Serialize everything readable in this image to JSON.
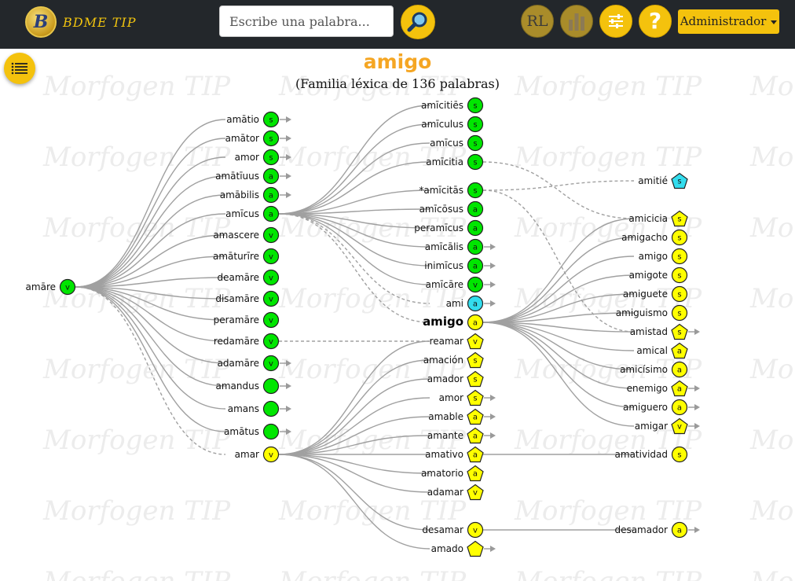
{
  "app": {
    "name": "BDME TIP",
    "logo_letter": "B",
    "watermark": "Morfogen TIP"
  },
  "search": {
    "placeholder": "Escribe una palabra..."
  },
  "toolbar": {
    "rl_label": "RL",
    "help_label": "?",
    "admin_label": "Administrador"
  },
  "title": {
    "word": "amigo",
    "subtitle": "(Familia léxica de 136 palabras)"
  },
  "colors": {
    "latin_node": "#00e600",
    "spanish_node": "#ffff00",
    "french_node": "#33ddee",
    "edge": "#a0a0a0",
    "title": "#f5a623",
    "accent": "#f4c20d",
    "topbar": "#23272b"
  },
  "nodes": [
    {
      "id": "amare",
      "label": "amāre",
      "tag": "v",
      "lang": "latin",
      "shape": "circle"
    },
    {
      "id": "amatio",
      "label": "amātio",
      "tag": "s",
      "lang": "latin",
      "shape": "circle",
      "more": true
    },
    {
      "id": "amator",
      "label": "amātor",
      "tag": "s",
      "lang": "latin",
      "shape": "circle",
      "more": true
    },
    {
      "id": "amor_l",
      "label": "amor",
      "tag": "s",
      "lang": "latin",
      "shape": "circle",
      "more": true
    },
    {
      "id": "amatiuus",
      "label": "amātīuus",
      "tag": "a",
      "lang": "latin",
      "shape": "circle",
      "more": true
    },
    {
      "id": "amabilis",
      "label": "amābilis",
      "tag": "a",
      "lang": "latin",
      "shape": "circle",
      "more": true
    },
    {
      "id": "amicus1",
      "label": "amīcus",
      "tag": "a",
      "lang": "latin",
      "shape": "circle"
    },
    {
      "id": "amascere",
      "label": "amascere",
      "tag": "v",
      "lang": "latin",
      "shape": "circle"
    },
    {
      "id": "amaturire",
      "label": "amāturīre",
      "tag": "v",
      "lang": "latin",
      "shape": "circle"
    },
    {
      "id": "deamare",
      "label": "deamāre",
      "tag": "v",
      "lang": "latin",
      "shape": "circle"
    },
    {
      "id": "disamare",
      "label": "disamāre",
      "tag": "v",
      "lang": "latin",
      "shape": "circle"
    },
    {
      "id": "peramare",
      "label": "peramāre",
      "tag": "v",
      "lang": "latin",
      "shape": "circle"
    },
    {
      "id": "redamare",
      "label": "redamāre",
      "tag": "v",
      "lang": "latin",
      "shape": "circle"
    },
    {
      "id": "adamare",
      "label": "adamāre",
      "tag": "v",
      "lang": "latin",
      "shape": "circle",
      "more": true
    },
    {
      "id": "amandus",
      "label": "amandus",
      "tag": "",
      "lang": "latin",
      "shape": "circle",
      "more": true
    },
    {
      "id": "amans",
      "label": "amans",
      "tag": "",
      "lang": "latin",
      "shape": "circle",
      "more": true
    },
    {
      "id": "amatus",
      "label": "amātus",
      "tag": "",
      "lang": "latin",
      "shape": "circle",
      "more": true
    },
    {
      "id": "amar",
      "label": "amar",
      "tag": "v",
      "lang": "spanish",
      "shape": "circle"
    },
    {
      "id": "amicities",
      "label": "amīcitiēs",
      "tag": "s",
      "lang": "latin",
      "shape": "circle"
    },
    {
      "id": "amiculus",
      "label": "amīculus",
      "tag": "s",
      "lang": "latin",
      "shape": "circle"
    },
    {
      "id": "amicus2",
      "label": "amīcus",
      "tag": "s",
      "lang": "latin",
      "shape": "circle"
    },
    {
      "id": "amicitia",
      "label": "amīcitia",
      "tag": "s",
      "lang": "latin",
      "shape": "circle"
    },
    {
      "id": "amicitas",
      "label": "*amīcitās",
      "tag": "s",
      "lang": "latin",
      "shape": "circle"
    },
    {
      "id": "amicosus",
      "label": "amīcōsus",
      "tag": "a",
      "lang": "latin",
      "shape": "circle"
    },
    {
      "id": "peramicus",
      "label": "peramīcus",
      "tag": "a",
      "lang": "latin",
      "shape": "circle"
    },
    {
      "id": "amicalis",
      "label": "amīcālis",
      "tag": "a",
      "lang": "latin",
      "shape": "circle",
      "more": true
    },
    {
      "id": "inimicus",
      "label": "inimīcus",
      "tag": "a",
      "lang": "latin",
      "shape": "circle",
      "more": true
    },
    {
      "id": "amicare",
      "label": "amīcāre",
      "tag": "v",
      "lang": "latin",
      "shape": "circle",
      "more": true
    },
    {
      "id": "ami",
      "label": "ami",
      "tag": "a",
      "lang": "french",
      "shape": "circle",
      "more": true
    },
    {
      "id": "amigo",
      "label": "amigo",
      "tag": "a",
      "lang": "spanish",
      "shape": "circle",
      "main": true
    },
    {
      "id": "reamar",
      "label": "reamar",
      "tag": "v",
      "lang": "spanish",
      "shape": "pentagon"
    },
    {
      "id": "amacion",
      "label": "amación",
      "tag": "s",
      "lang": "spanish",
      "shape": "pentagon"
    },
    {
      "id": "amador",
      "label": "amador",
      "tag": "s",
      "lang": "spanish",
      "shape": "pentagon"
    },
    {
      "id": "amor_s",
      "label": "amor",
      "tag": "s",
      "lang": "spanish",
      "shape": "pentagon",
      "more": true
    },
    {
      "id": "amable",
      "label": "amable",
      "tag": "a",
      "lang": "spanish",
      "shape": "pentagon",
      "more": true
    },
    {
      "id": "amante",
      "label": "amante",
      "tag": "a",
      "lang": "spanish",
      "shape": "pentagon",
      "more": true
    },
    {
      "id": "amativo",
      "label": "amativo",
      "tag": "a",
      "lang": "spanish",
      "shape": "pentagon"
    },
    {
      "id": "amatorio",
      "label": "amatorio",
      "tag": "a",
      "lang": "spanish",
      "shape": "pentagon"
    },
    {
      "id": "adamar",
      "label": "adamar",
      "tag": "v",
      "lang": "spanish",
      "shape": "pentagon"
    },
    {
      "id": "desamar",
      "label": "desamar",
      "tag": "v",
      "lang": "spanish",
      "shape": "circle"
    },
    {
      "id": "amado",
      "label": "amado",
      "tag": "",
      "lang": "spanish",
      "shape": "pentagon",
      "more": true
    },
    {
      "id": "amitie",
      "label": "amitié",
      "tag": "s",
      "lang": "french",
      "shape": "pentagon"
    },
    {
      "id": "amicicia",
      "label": "amicicia",
      "tag": "s",
      "lang": "spanish",
      "shape": "pentagon"
    },
    {
      "id": "amigacho",
      "label": "amigacho",
      "tag": "s",
      "lang": "spanish",
      "shape": "circle"
    },
    {
      "id": "amigo_s",
      "label": "amigo",
      "tag": "s",
      "lang": "spanish",
      "shape": "circle"
    },
    {
      "id": "amigote",
      "label": "amigote",
      "tag": "s",
      "lang": "spanish",
      "shape": "circle"
    },
    {
      "id": "amiguete",
      "label": "amiguete",
      "tag": "s",
      "lang": "spanish",
      "shape": "circle"
    },
    {
      "id": "amiguismo",
      "label": "amiguismo",
      "tag": "s",
      "lang": "spanish",
      "shape": "circle"
    },
    {
      "id": "amistad",
      "label": "amistad",
      "tag": "s",
      "lang": "spanish",
      "shape": "pentagon",
      "more": true
    },
    {
      "id": "amical",
      "label": "amical",
      "tag": "a",
      "lang": "spanish",
      "shape": "pentagon"
    },
    {
      "id": "amicisimo",
      "label": "amicísimo",
      "tag": "a",
      "lang": "spanish",
      "shape": "circle"
    },
    {
      "id": "enemigo",
      "label": "enemigo",
      "tag": "a",
      "lang": "spanish",
      "shape": "pentagon",
      "more": true
    },
    {
      "id": "amiguero",
      "label": "amiguero",
      "tag": "a",
      "lang": "spanish",
      "shape": "circle",
      "more": true
    },
    {
      "id": "amigar",
      "label": "amigar",
      "tag": "v",
      "lang": "spanish",
      "shape": "pentagon",
      "more": true
    },
    {
      "id": "amatividad",
      "label": "amatividad",
      "tag": "s",
      "lang": "spanish",
      "shape": "circle"
    },
    {
      "id": "desamador",
      "label": "desamador",
      "tag": "a",
      "lang": "spanish",
      "shape": "circle",
      "more": true
    }
  ],
  "edges": [
    [
      "amare",
      "amatio"
    ],
    [
      "amare",
      "amator"
    ],
    [
      "amare",
      "amor_l"
    ],
    [
      "amare",
      "amatiuus"
    ],
    [
      "amare",
      "amabilis"
    ],
    [
      "amare",
      "amicus1"
    ],
    [
      "amare",
      "amascere"
    ],
    [
      "amare",
      "amaturire"
    ],
    [
      "amare",
      "deamare"
    ],
    [
      "amare",
      "disamare"
    ],
    [
      "amare",
      "peramare"
    ],
    [
      "amare",
      "redamare"
    ],
    [
      "amare",
      "adamare"
    ],
    [
      "amare",
      "amandus"
    ],
    [
      "amare",
      "amans"
    ],
    [
      "amare",
      "amatus"
    ],
    [
      "amare",
      "amar",
      "dashed"
    ],
    [
      "amicus1",
      "amicities"
    ],
    [
      "amicus1",
      "amiculus"
    ],
    [
      "amicus1",
      "amicus2"
    ],
    [
      "amicus1",
      "amicitia"
    ],
    [
      "amicus1",
      "amicitas"
    ],
    [
      "amicus1",
      "amicosus"
    ],
    [
      "amicus1",
      "peramicus"
    ],
    [
      "amicus1",
      "amicalis"
    ],
    [
      "amicus1",
      "inimicus"
    ],
    [
      "amicus1",
      "amicare"
    ],
    [
      "amicus1",
      "ami",
      "dashed"
    ],
    [
      "amicus1",
      "amigo",
      "dashed"
    ],
    [
      "redamare",
      "reamar",
      "dashed"
    ],
    [
      "amar",
      "reamar"
    ],
    [
      "amar",
      "amacion"
    ],
    [
      "amar",
      "amador"
    ],
    [
      "amar",
      "amor_s"
    ],
    [
      "amar",
      "amable"
    ],
    [
      "amar",
      "amante"
    ],
    [
      "amar",
      "amativo"
    ],
    [
      "amar",
      "amatorio"
    ],
    [
      "amar",
      "adamar"
    ],
    [
      "amar",
      "desamar"
    ],
    [
      "amar",
      "amado"
    ],
    [
      "amicitia",
      "amicicia",
      "dashed"
    ],
    [
      "amicitas",
      "amitie",
      "dashed"
    ],
    [
      "amicitas",
      "amistad",
      "dashed"
    ],
    [
      "amigo",
      "amicicia"
    ],
    [
      "amigo",
      "amigacho"
    ],
    [
      "amigo",
      "amigo_s"
    ],
    [
      "amigo",
      "amigote"
    ],
    [
      "amigo",
      "amiguete"
    ],
    [
      "amigo",
      "amiguismo"
    ],
    [
      "amigo",
      "amistad"
    ],
    [
      "amigo",
      "amical"
    ],
    [
      "amigo",
      "amicisimo"
    ],
    [
      "amigo",
      "enemigo"
    ],
    [
      "amigo",
      "amiguero"
    ],
    [
      "amigo",
      "amigar"
    ],
    [
      "amativo",
      "amatividad"
    ],
    [
      "desamar",
      "desamador"
    ]
  ]
}
